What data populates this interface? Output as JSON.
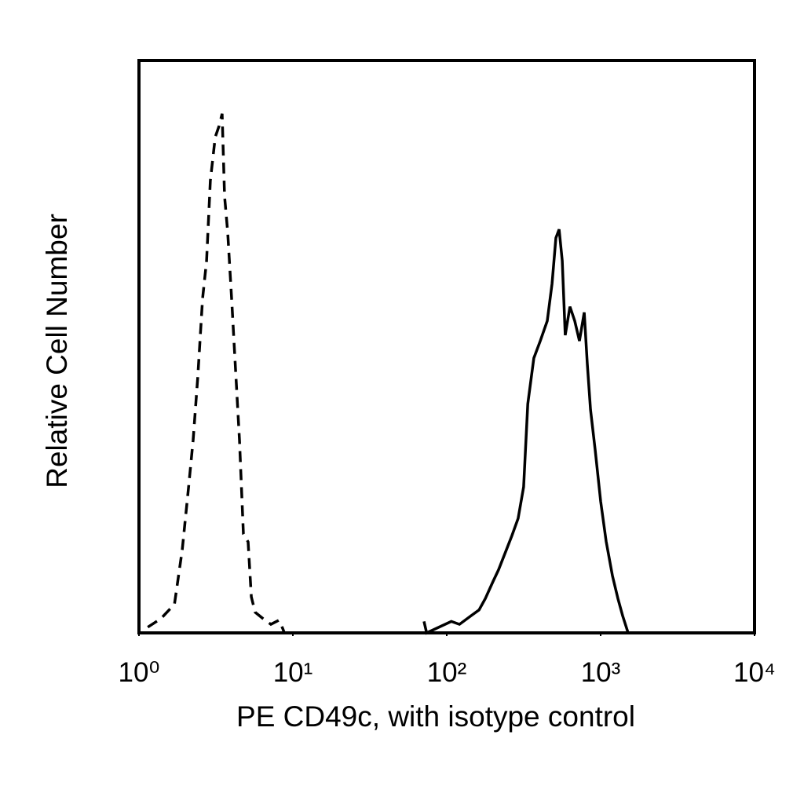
{
  "chart_data": {
    "type": "line",
    "x_label": "PE CD49c, with isotype control",
    "y_label": "Relative Cell Number",
    "xscale": "log",
    "xlim": [
      1,
      10000
    ],
    "xticks": [
      {
        "value": 1,
        "label": "10⁰"
      },
      {
        "value": 10,
        "label": "10¹"
      },
      {
        "value": 100,
        "label": "10²"
      },
      {
        "value": 1000,
        "label": "10³"
      },
      {
        "value": 10000,
        "label": "10⁴"
      }
    ],
    "ylim": [
      0,
      100
    ],
    "grid": false,
    "series": [
      {
        "color": "#000000",
        "line_style": "dashed",
        "x": [
          1.14,
          1.39,
          1.7,
          1.91,
          2.1,
          2.25,
          2.41,
          2.59,
          2.75,
          2.91,
          3.13,
          3.31,
          3.47,
          3.6,
          3.77,
          4.0,
          4.24,
          4.5,
          4.77,
          5.12,
          5.37,
          5.69,
          6.4,
          7.2,
          8.09,
          8.58,
          8.8,
          1500
        ],
        "values": [
          1,
          2.5,
          5,
          14.5,
          25.5,
          33.7,
          44.7,
          58.4,
          65,
          79,
          86.6,
          88.5,
          90.7,
          76.3,
          70,
          58.4,
          46,
          33.7,
          17.3,
          15.9,
          6.3,
          3.6,
          2.5,
          1.5,
          2.2,
          0.8,
          0,
          0
        ]
      },
      {
        "color": "#000000",
        "line_style": "solid",
        "x": [
          71.1,
          74,
          107,
          121,
          144,
          162,
          178,
          200,
          217,
          244,
          265,
          291,
          316,
          336,
          368,
          405,
          450,
          483,
          512,
          537,
          563,
          589,
          632,
          679,
          728,
          782,
          819,
          859,
          921,
          1000,
          1086,
          1193,
          1295,
          1389,
          1509
        ],
        "values": [
          2,
          0,
          2,
          1.5,
          3,
          4,
          6,
          9,
          11,
          14.5,
          17,
          20,
          25.5,
          40,
          48,
          51,
          54.5,
          61,
          69,
          70.5,
          65,
          52,
          57,
          54.5,
          51,
          56,
          47,
          39,
          32,
          23,
          16,
          10,
          6,
          3,
          0
        ]
      }
    ]
  }
}
